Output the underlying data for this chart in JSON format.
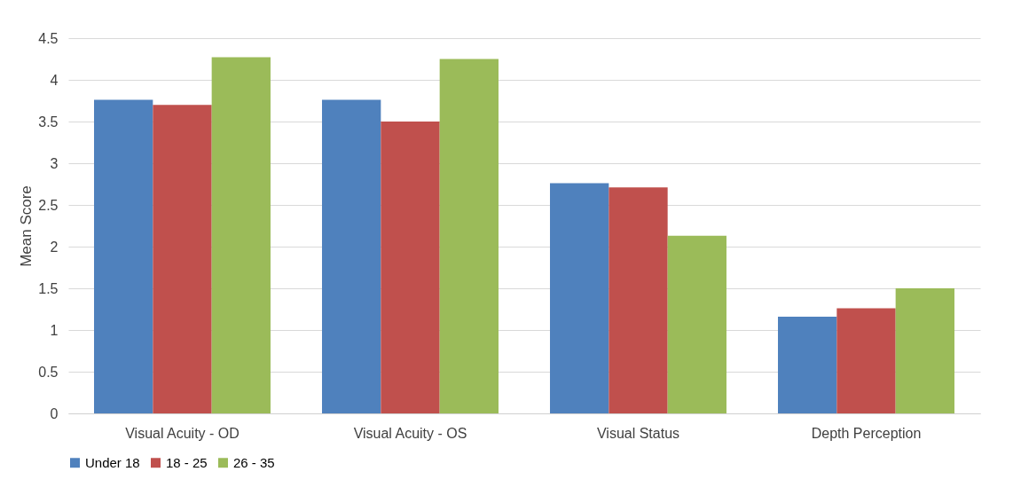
{
  "chart_data": {
    "type": "bar",
    "ylabel": "Mean Score",
    "categories": [
      "Visual Acuity - OD",
      "Visual Acuity - OS",
      "Visual Status",
      "Depth Perception"
    ],
    "series": [
      {
        "name": "Under 18",
        "color": "#4f81bd",
        "values": [
          3.76,
          3.76,
          2.76,
          1.16
        ]
      },
      {
        "name": "18 - 25",
        "color": "#c0504d",
        "values": [
          3.7,
          3.5,
          2.71,
          1.26
        ]
      },
      {
        "name": "26 - 35",
        "color": "#9bbb59",
        "values": [
          4.27,
          4.25,
          2.13,
          1.5
        ]
      }
    ],
    "ylim": [
      0,
      4.5
    ],
    "yticks": [
      0,
      0.5,
      1,
      1.5,
      2,
      2.5,
      3,
      3.5,
      4,
      4.5
    ],
    "grid": "y",
    "legend": "bottom"
  }
}
